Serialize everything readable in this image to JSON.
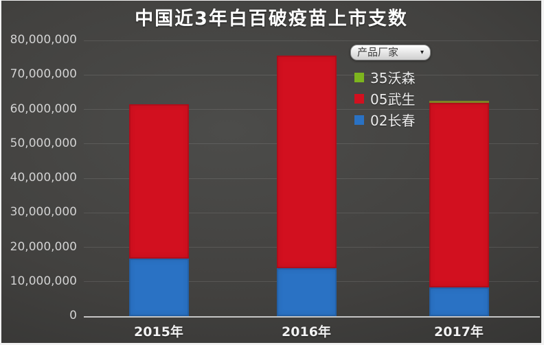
{
  "title": "中国近3年白百破疫苗上市支数",
  "legend": {
    "dropdown_label": "产品厂家",
    "items": [
      {
        "label": "35沃森",
        "color": "#7db51e"
      },
      {
        "label": "05武生",
        "color": "#d2101f"
      },
      {
        "label": "02长春",
        "color": "#2a72c4"
      }
    ]
  },
  "chart_data": {
    "type": "bar",
    "stacked": true,
    "title": "中国近3年白百破疫苗上市支数",
    "categories": [
      "2015年",
      "2016年",
      "2017年"
    ],
    "series": [
      {
        "name": "02长春",
        "color": "#2a72c4",
        "values": [
          16800000,
          14000000,
          8400000
        ]
      },
      {
        "name": "05武生",
        "color": "#d2101f",
        "values": [
          44700000,
          61700000,
          53400000
        ]
      },
      {
        "name": "35沃森",
        "color": "#9aa22e",
        "values": [
          0,
          0,
          600000
        ]
      }
    ],
    "totals": [
      61500000,
      75700000,
      62400000
    ],
    "ylim": [
      0,
      80000000
    ],
    "ytick_interval": 10000000,
    "ytick_labels": [
      "0",
      "10,000,000",
      "20,000,000",
      "30,000,000",
      "40,000,000",
      "50,000,000",
      "60,000,000",
      "70,000,000",
      "80,000,000"
    ],
    "grid": true,
    "legend_title": "产品厂家",
    "legend_position": "upper-right",
    "legend_order": [
      "35沃森",
      "05武生",
      "02长春"
    ]
  }
}
